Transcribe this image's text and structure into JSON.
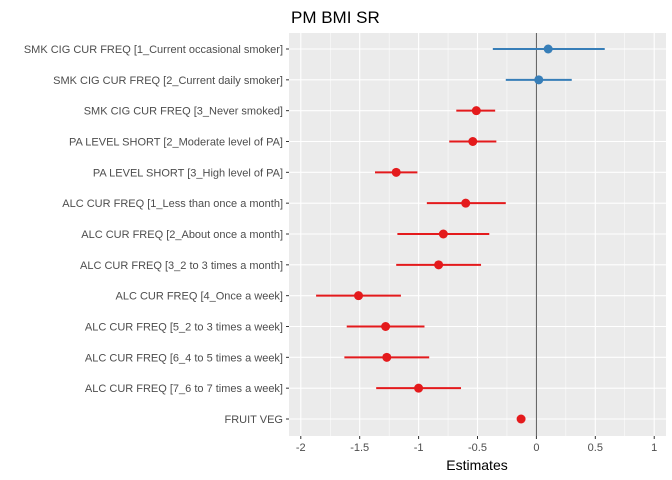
{
  "chart_data": {
    "type": "scatter",
    "subtype": "coefficient-plot",
    "title": "PM BMI SR",
    "xlabel": "Estimates",
    "ylabel": "",
    "xlim": [
      -2.1,
      1.1
    ],
    "xticks": [
      -2,
      -1.5,
      -1,
      -0.5,
      0,
      0.5,
      1
    ],
    "xtick_labels": [
      "-2",
      "-1.5",
      "-1",
      "-0.5",
      "0",
      "0.5",
      "1"
    ],
    "reference_line": 0,
    "grid": true,
    "colors": {
      "positive": "#377eb8",
      "negative": "#e41a1c",
      "panel": "#ebebeb",
      "grid": "#ffffff",
      "reference": "#595959"
    },
    "terms": [
      {
        "label": "SMK CIG CUR FREQ [1_Current occasional smoker]",
        "estimate": 0.1,
        "ci_low": -0.37,
        "ci_high": 0.58
      },
      {
        "label": "SMK CIG CUR FREQ [2_Current daily smoker]",
        "estimate": 0.02,
        "ci_low": -0.26,
        "ci_high": 0.3
      },
      {
        "label": "SMK CIG CUR FREQ [3_Never smoked]",
        "estimate": -0.51,
        "ci_low": -0.68,
        "ci_high": -0.35
      },
      {
        "label": "PA LEVEL SHORT [2_Moderate level of PA]",
        "estimate": -0.54,
        "ci_low": -0.74,
        "ci_high": -0.34
      },
      {
        "label": "PA LEVEL SHORT [3_High level of PA]",
        "estimate": -1.19,
        "ci_low": -1.37,
        "ci_high": -1.01
      },
      {
        "label": "ALC CUR FREQ [1_Less than once a month]",
        "estimate": -0.6,
        "ci_low": -0.93,
        "ci_high": -0.26
      },
      {
        "label": "ALC CUR FREQ [2_About once a month]",
        "estimate": -0.79,
        "ci_low": -1.18,
        "ci_high": -0.4
      },
      {
        "label": "ALC CUR FREQ [3_2 to 3 times a month]",
        "estimate": -0.83,
        "ci_low": -1.19,
        "ci_high": -0.47
      },
      {
        "label": "ALC CUR FREQ [4_Once a week]",
        "estimate": -1.51,
        "ci_low": -1.87,
        "ci_high": -1.15
      },
      {
        "label": "ALC CUR FREQ [5_2 to 3 times a week]",
        "estimate": -1.28,
        "ci_low": -1.61,
        "ci_high": -0.95
      },
      {
        "label": "ALC CUR FREQ [6_4 to 5 times a week]",
        "estimate": -1.27,
        "ci_low": -1.63,
        "ci_high": -0.91
      },
      {
        "label": "ALC CUR FREQ [7_6 to 7 times a week]",
        "estimate": -1.0,
        "ci_low": -1.36,
        "ci_high": -0.64
      },
      {
        "label": "FRUIT VEG",
        "estimate": -0.13,
        "ci_low": -0.15,
        "ci_high": -0.11
      }
    ]
  }
}
